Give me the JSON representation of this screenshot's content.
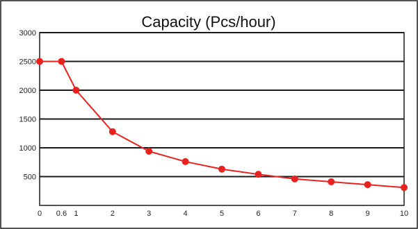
{
  "chart_data": {
    "type": "line",
    "title": "Capacity (Pcs/hour)",
    "xlabel": "",
    "ylabel": "",
    "x_ticks": [
      0,
      0.6,
      1,
      2,
      3,
      4,
      5,
      6,
      7,
      8,
      9,
      10
    ],
    "y_ticks": [
      500,
      1000,
      1500,
      2000,
      2500,
      3000
    ],
    "xlim": [
      0,
      10
    ],
    "ylim": [
      0,
      3000
    ],
    "grid": "horizontal",
    "legend": "none",
    "series": [
      {
        "color": "#e8231f",
        "points": [
          {
            "x": 0,
            "y": 2500
          },
          {
            "x": 0.6,
            "y": 2500
          },
          {
            "x": 1,
            "y": 2000
          },
          {
            "x": 2,
            "y": 1280
          },
          {
            "x": 3,
            "y": 940
          },
          {
            "x": 4,
            "y": 760
          },
          {
            "x": 5,
            "y": 630
          },
          {
            "x": 6,
            "y": 540
          },
          {
            "x": 7,
            "y": 460
          },
          {
            "x": 8,
            "y": 410
          },
          {
            "x": 9,
            "y": 360
          },
          {
            "x": 10,
            "y": 310
          }
        ]
      }
    ]
  }
}
